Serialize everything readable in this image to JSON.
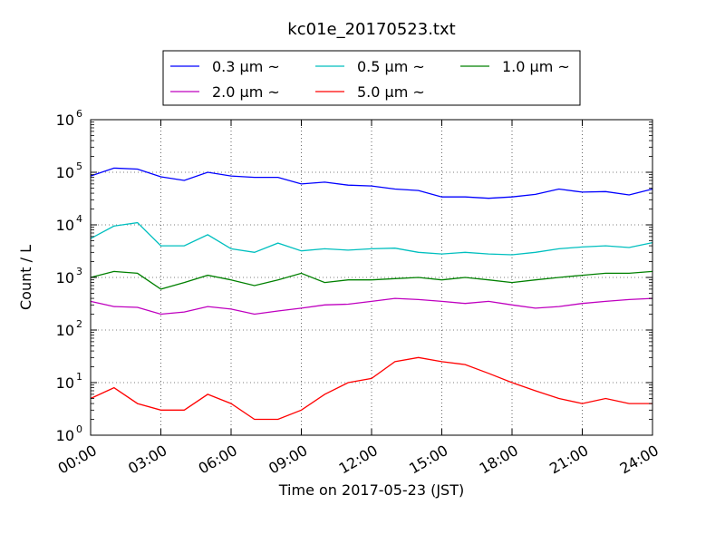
{
  "chart_data": {
    "type": "line",
    "title": "kc01e_20170523.txt",
    "xlabel": "Time on 2017-05-23 (JST)",
    "ylabel": "Count / L",
    "yscale": "log",
    "ylim": [
      1,
      1000000
    ],
    "y_ticks": [
      {
        "value": 1,
        "base": "10",
        "exp": "0"
      },
      {
        "value": 10,
        "base": "10",
        "exp": "1"
      },
      {
        "value": 100,
        "base": "10",
        "exp": "2"
      },
      {
        "value": 1000,
        "base": "10",
        "exp": "3"
      },
      {
        "value": 10000,
        "base": "10",
        "exp": "4"
      },
      {
        "value": 100000,
        "base": "10",
        "exp": "5"
      },
      {
        "value": 1000000,
        "base": "10",
        "exp": "6"
      }
    ],
    "xlim_hours": [
      0,
      24
    ],
    "x_ticks": [
      {
        "hour": 0,
        "label": "00:00"
      },
      {
        "hour": 3,
        "label": "03:00"
      },
      {
        "hour": 6,
        "label": "06:00"
      },
      {
        "hour": 9,
        "label": "09:00"
      },
      {
        "hour": 12,
        "label": "12:00"
      },
      {
        "hour": 15,
        "label": "15:00"
      },
      {
        "hour": 18,
        "label": "18:00"
      },
      {
        "hour": 21,
        "label": "21:00"
      },
      {
        "hour": 24,
        "label": "24:00"
      }
    ],
    "grid": true,
    "legend_position": "top-center",
    "x_hours": [
      0,
      1,
      2,
      3,
      4,
      5,
      6,
      7,
      8,
      9,
      10,
      11,
      12,
      13,
      14,
      15,
      16,
      17,
      18,
      19,
      20,
      21,
      22,
      23,
      24
    ],
    "series": [
      {
        "name": "0.3 μm ~",
        "color": "#0000ff",
        "values": [
          85000,
          120000,
          115000,
          82000,
          70000,
          100000,
          85000,
          80000,
          80000,
          60000,
          65000,
          57000,
          55000,
          48000,
          45000,
          34000,
          34000,
          32000,
          34000,
          38000,
          48000,
          42000,
          43000,
          37000,
          48000
        ]
      },
      {
        "name": "0.5 μm ~",
        "color": "#00bfbf",
        "values": [
          5500,
          9500,
          11000,
          4000,
          4000,
          6500,
          3500,
          3000,
          4500,
          3200,
          3500,
          3300,
          3500,
          3600,
          3000,
          2800,
          3000,
          2800,
          2700,
          3000,
          3500,
          3800,
          4000,
          3700,
          4600
        ]
      },
      {
        "name": "1.0 μm ~",
        "color": "#008000",
        "values": [
          1000,
          1300,
          1200,
          600,
          800,
          1100,
          900,
          700,
          900,
          1200,
          800,
          900,
          900,
          950,
          1000,
          900,
          1000,
          900,
          800,
          900,
          1000,
          1100,
          1200,
          1200,
          1300
        ]
      },
      {
        "name": "2.0 μm ~",
        "color": "#bf00bf",
        "values": [
          350,
          280,
          270,
          200,
          220,
          280,
          250,
          200,
          230,
          260,
          300,
          310,
          350,
          400,
          380,
          350,
          320,
          350,
          300,
          260,
          280,
          320,
          350,
          380,
          400
        ]
      },
      {
        "name": "5.0 μm ~",
        "color": "#ff0000",
        "values": [
          5,
          8,
          4,
          3,
          3,
          6,
          4,
          2,
          2,
          3,
          6,
          10,
          12,
          25,
          30,
          25,
          22,
          15,
          10,
          7,
          5,
          4,
          5,
          4,
          4
        ]
      }
    ]
  }
}
